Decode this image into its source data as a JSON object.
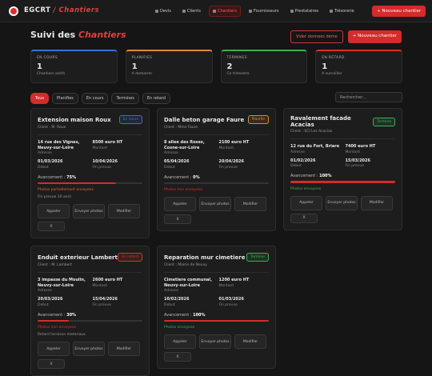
{
  "nav": {
    "brand": "EGCRT",
    "section": "/ Chantiers",
    "items": [
      "Devis",
      "Clients",
      "Chantiers",
      "Fournisseurs",
      "Prestataires",
      "Trésorerie"
    ],
    "active": 2,
    "button": "+ Nouveau chantier"
  },
  "header": {
    "title": "Suivi des",
    "title_accent": "Chantiers",
    "buttons": [
      "Vider donnees demo",
      "+ Nouveau chantier"
    ]
  },
  "stats": [
    {
      "label": "EN COURS",
      "value": 1,
      "note": "Chantiers actifs",
      "color": "#3b6fd8"
    },
    {
      "label": "PLANIFIES",
      "value": 1,
      "note": "A demarrer",
      "color": "#e08a2c"
    },
    {
      "label": "TERMINES",
      "value": 2,
      "note": "Ce trimestre",
      "color": "#3fae5a"
    },
    {
      "label": "EN RETARD",
      "value": 1,
      "note": "A surveiller",
      "color": "#d8312f"
    }
  ],
  "filters": {
    "items": [
      "Tous",
      "Planifies",
      "En cours",
      "Termines",
      "En retard"
    ],
    "active": 0,
    "search_placeholder": "Rechercher..."
  },
  "projects": [
    {
      "title": "Extension maison Roux",
      "status": "En cours",
      "status_color": "#3b6fd8",
      "client": "Client : M. Roux",
      "address": "14 rue des Vignes, Neuvy-sur-Loire",
      "address_label": "Adresse",
      "amount": "8500 euro HT",
      "amount_label": "Montant",
      "start": "01/03/2026",
      "start_label": "Debut",
      "end": "10/04/2026",
      "end_label": "Fin prevue",
      "progress_text": "Avancement :",
      "progress": 75,
      "progress_label": "75%",
      "photos": "Photos partiellement envoyees",
      "photos_color": "#e0653a",
      "note": "Fin prevue 10 avril",
      "actions": [
        "Appeler",
        "Envoyer photos",
        "Modifier",
        "X"
      ]
    },
    {
      "title": "Dalle beton garage Faure",
      "status": "Planifie",
      "status_color": "#e08a2c",
      "client": "Client : Mme Faure",
      "address": "8 allee des Roses, Cosne-sur-Loire",
      "address_label": "Adresse",
      "amount": "2100 euro HT",
      "amount_label": "Montant",
      "start": "05/04/2026",
      "start_label": "Debut",
      "end": "20/04/2026",
      "end_label": "Fin prevue",
      "progress_text": "Avancement :",
      "progress": 0,
      "progress_label": "0%",
      "photos": "Photos non envoyees",
      "photos_color": "#d8312f",
      "actions": [
        "Appeler",
        "Envoyer photos",
        "Modifier",
        "X"
      ]
    },
    {
      "title": "Ravalement facade Acacias",
      "status": "Termine",
      "status_color": "#3fae5a",
      "client": "Client : SCI Les Acacias",
      "address": "12 rue du Fort, Briare",
      "address_label": "Adresse",
      "amount": "7400 euro HT",
      "amount_label": "Montant",
      "start": "01/02/2026",
      "start_label": "Debut",
      "end": "15/03/2026",
      "end_label": "Fin prevue",
      "progress_text": "Avancement :",
      "progress": 100,
      "progress_label": "100%",
      "photos": "Photos envoyees",
      "photos_color": "#3fae5a",
      "actions": [
        "Appeler",
        "Envoyer photos",
        "Modifier",
        "X"
      ]
    },
    {
      "title": "Enduit exterieur Lambert",
      "status": "En retard",
      "status_color": "#d8312f",
      "client": "Client : M. Lambert",
      "address": "3 impasse du Moulin, Neuvy-sur-Loire",
      "address_label": "Adresse",
      "amount": "2600 euro HT",
      "amount_label": "Montant",
      "start": "20/03/2026",
      "start_label": "Debut",
      "end": "15/04/2026",
      "end_label": "Fin prevue",
      "progress_text": "Avancement :",
      "progress": 30,
      "progress_label": "30%",
      "photos": "Photos non envoyees",
      "photos_color": "#d8312f",
      "note": "Retard livraison materiaux",
      "actions": [
        "Appeler",
        "Envoyer photos",
        "Modifier",
        "X"
      ]
    },
    {
      "title": "Reparation mur cimetiere",
      "status": "Termine",
      "status_color": "#3fae5a",
      "client": "Client : Mairie de Neuvy",
      "address": "Cimetiere communal, Neuvy-sur-Loire",
      "address_label": "Adresse",
      "amount": "1200 euro HT",
      "amount_label": "Montant",
      "start": "10/02/2026",
      "start_label": "Debut",
      "end": "01/03/2026",
      "end_label": "Fin prevue",
      "progress_text": "Avancement :",
      "progress": 100,
      "progress_label": "100%",
      "photos": "Photos envoyees",
      "photos_color": "#3fae5a",
      "actions": [
        "Appeler",
        "Envoyer photos",
        "Modifier",
        "X"
      ]
    }
  ]
}
